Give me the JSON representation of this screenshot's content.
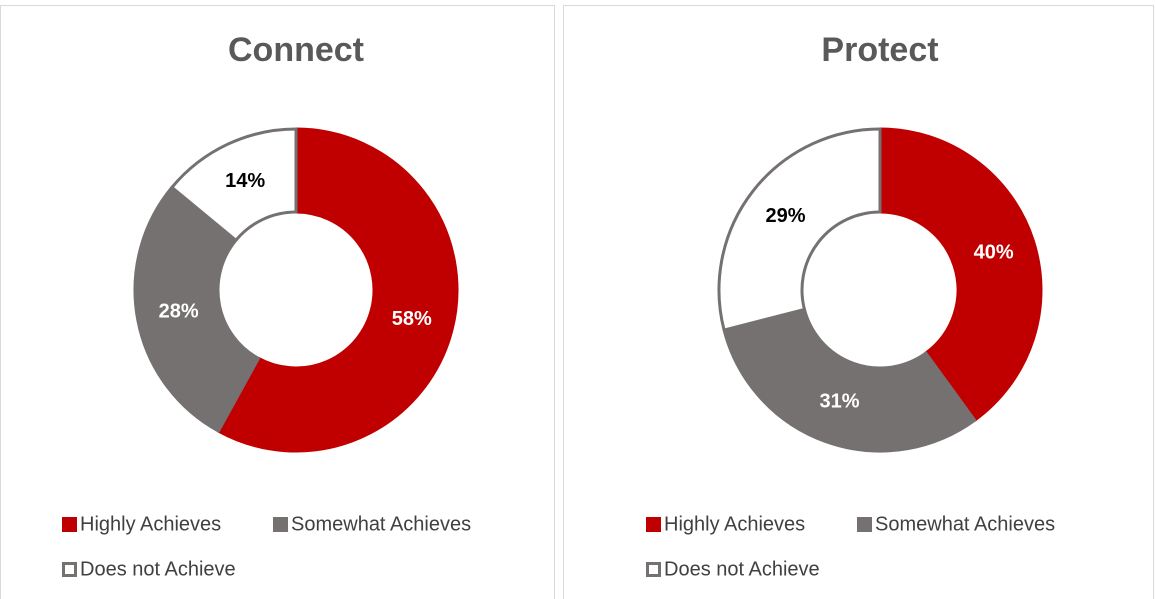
{
  "chart_data": [
    {
      "type": "donut",
      "title": "Connect",
      "categories": [
        "Highly Achieves",
        "Somewhat Achieves",
        "Does not Achieve"
      ],
      "values": [
        58,
        28,
        14
      ],
      "value_labels": [
        "58%",
        "28%",
        "14%"
      ],
      "colors": [
        "#c00000",
        "#767171",
        "#ffffff"
      ],
      "edgecolors": [
        "#c00000",
        "#767171",
        "#767171"
      ],
      "label_colors": [
        "#ffffff",
        "#ffffff",
        "#000000"
      ]
    },
    {
      "type": "donut",
      "title": "Protect",
      "categories": [
        "Highly Achieves",
        "Somewhat Achieves",
        "Does not Achieve"
      ],
      "values": [
        40,
        31,
        29
      ],
      "value_labels": [
        "40%",
        "31%",
        "29%"
      ],
      "colors": [
        "#c00000",
        "#767171",
        "#ffffff"
      ],
      "edgecolors": [
        "#c00000",
        "#767171",
        "#767171"
      ],
      "label_colors": [
        "#ffffff",
        "#ffffff",
        "#000000"
      ]
    }
  ]
}
